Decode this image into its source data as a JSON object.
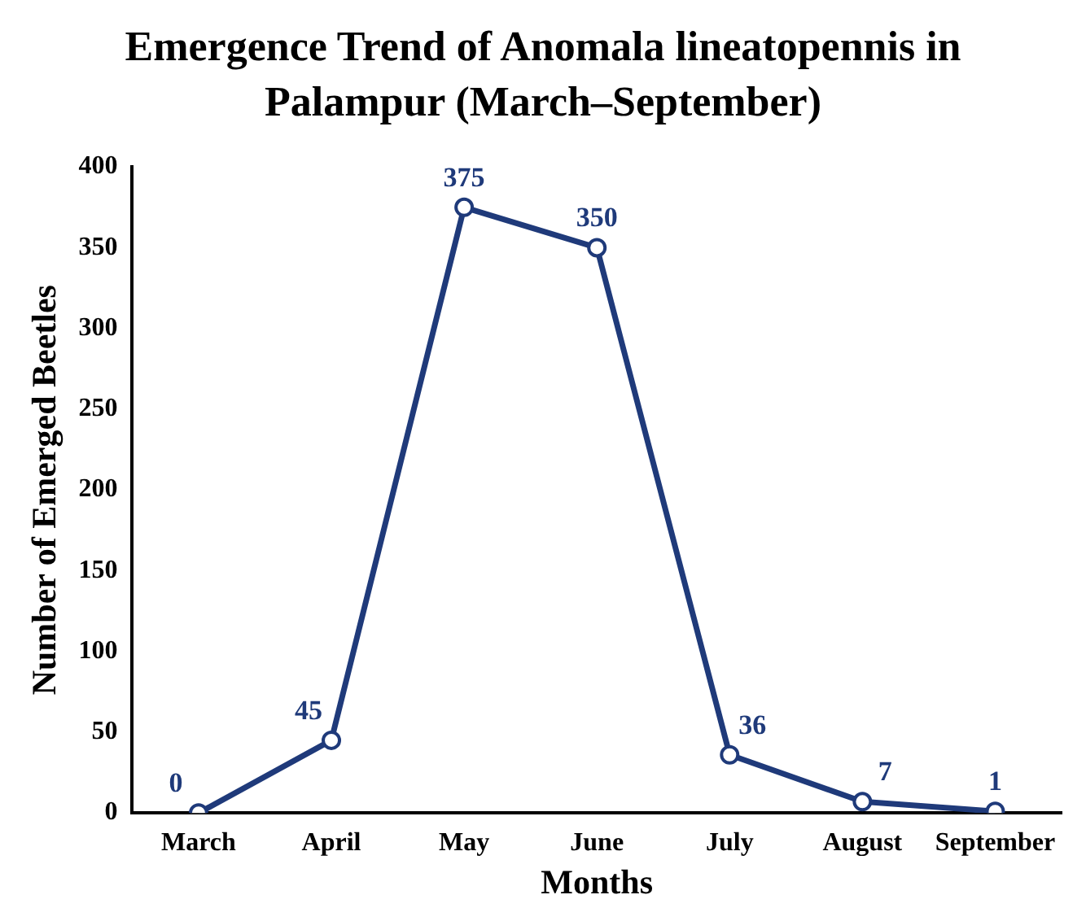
{
  "chart_data": {
    "type": "line",
    "title": "Emergence Trend of Anomala lineatopennis in Palampur (March–September)",
    "xlabel": "Months",
    "ylabel": "Number of Emerged Beetles",
    "categories": [
      "March",
      "April",
      "May",
      "June",
      "July",
      "August",
      "September"
    ],
    "series": [
      {
        "color": "#1f3a7a",
        "values": [
          0,
          45,
          375,
          350,
          36,
          7,
          1
        ]
      }
    ],
    "ylim": [
      0,
      400
    ],
    "yticks": [
      0,
      50,
      100,
      150,
      200,
      250,
      300,
      350,
      400
    ],
    "grid": false,
    "legend": false,
    "marker": "circle",
    "line_style": "solid",
    "data_labels": true
  }
}
